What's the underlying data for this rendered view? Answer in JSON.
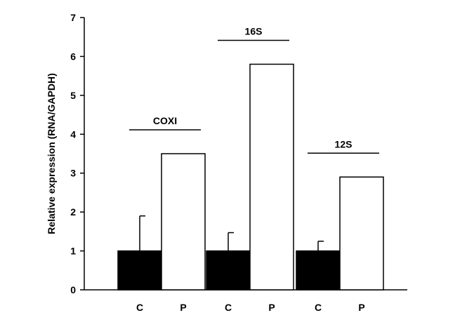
{
  "chart_data": {
    "type": "bar",
    "title": "",
    "xlabel": "",
    "ylabel": "Relative expression (RNA/GAPDH)",
    "ylim": [
      0,
      7
    ],
    "yticks": [
      "0",
      "1",
      "2",
      "3",
      "4",
      "5",
      "6",
      "7"
    ],
    "grid": false,
    "groups": [
      {
        "label": "COXI",
        "bars": [
          {
            "category": "C",
            "value": 1.0,
            "error": 0.9,
            "fill": "#000000"
          },
          {
            "category": "P",
            "value": 3.5,
            "fill": "#ffffff"
          }
        ]
      },
      {
        "label": "16S",
        "bars": [
          {
            "category": "C",
            "value": 1.0,
            "error": 0.47,
            "fill": "#000000"
          },
          {
            "category": "P",
            "value": 5.8,
            "fill": "#ffffff"
          }
        ]
      },
      {
        "label": "12S",
        "bars": [
          {
            "category": "C",
            "value": 1.0,
            "error": 0.25,
            "fill": "#000000"
          },
          {
            "category": "P",
            "value": 2.9,
            "fill": "#ffffff"
          }
        ]
      }
    ]
  }
}
